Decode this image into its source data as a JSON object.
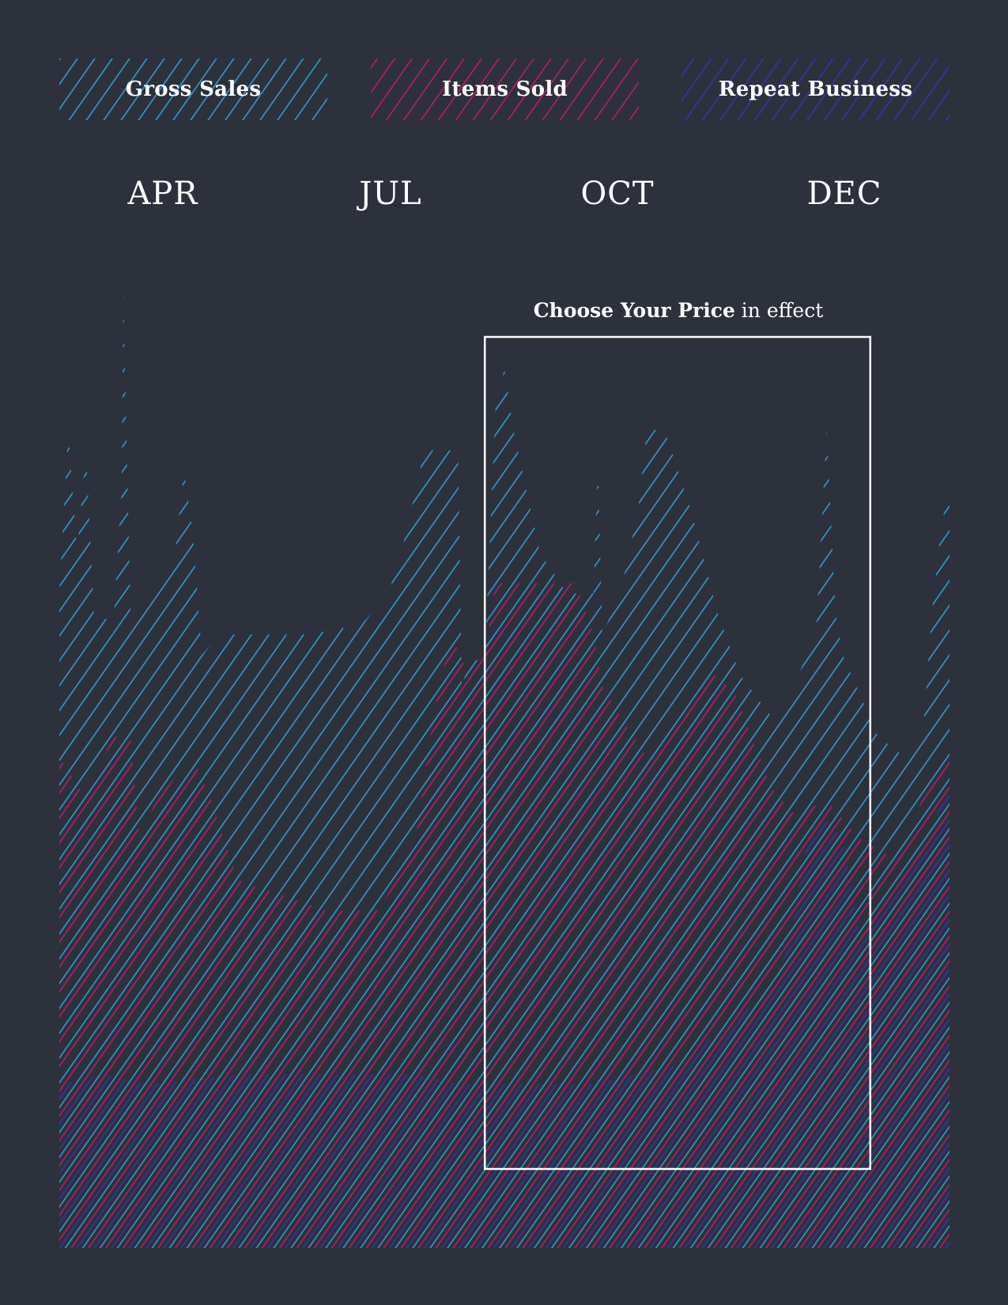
{
  "legend": [
    {
      "label": "Gross Sales",
      "color": "#2e9bd0"
    },
    {
      "label": "Items Sold",
      "color": "#c2166f"
    },
    {
      "label": "Repeat Business",
      "color": "#3a2fb0"
    }
  ],
  "months": [
    "APR",
    "JUL",
    "OCT",
    "DEC"
  ],
  "annotation": {
    "bold": "Choose Your Price",
    "rest": "in effect"
  },
  "colors": {
    "background": "#2d313c",
    "box": "#ffffff"
  },
  "chart_data": {
    "type": "area",
    "x_ticks": [
      "APR",
      "JUL",
      "OCT",
      "DEC"
    ],
    "grid": false,
    "legend": "top",
    "ylim": [
      0,
      100
    ],
    "highlight": {
      "label": "Choose Your Price in effect",
      "start": 0.478,
      "end": 0.911
    },
    "series": [
      {
        "name": "Gross Sales",
        "color": "#2e9bd0",
        "x": [
          0,
          0.01,
          0.02,
          0.03,
          0.04,
          0.05,
          0.06,
          0.07,
          0.072,
          0.075,
          0.08,
          0.1,
          0.13,
          0.14,
          0.15,
          0.16,
          0.18,
          0.22,
          0.28,
          0.34,
          0.37,
          0.39,
          0.41,
          0.43,
          0.448,
          0.452,
          0.46,
          0.478,
          0.49,
          0.5,
          0.51,
          0.54,
          0.57,
          0.6,
          0.605,
          0.61,
          0.62,
          0.63,
          0.65,
          0.66,
          0.68,
          0.71,
          0.74,
          0.765,
          0.8,
          0.825,
          0.85,
          0.862,
          0.872,
          0.88,
          0.9,
          0.92,
          0.95,
          0.97,
          0.98,
          0.99,
          1.0
        ],
        "y": [
          64,
          80,
          68,
          78,
          60,
          62,
          60,
          74,
          94,
          81,
          62,
          64,
          68,
          76,
          70,
          58,
          60,
          60,
          60,
          61,
          64,
          70,
          78,
          78,
          78,
          55,
          57,
          58,
          82,
          86,
          80,
          68,
          64,
          64,
          77,
          60,
          62,
          64,
          72,
          80,
          80,
          72,
          62,
          56,
          52,
          55,
          60,
          80,
          62,
          58,
          54,
          50,
          48,
          50,
          62,
          70,
          75
        ]
      },
      {
        "name": "Items Sold",
        "color": "#c2166f",
        "x": [
          0,
          0.03,
          0.06,
          0.08,
          0.09,
          0.11,
          0.15,
          0.17,
          0.2,
          0.3,
          0.36,
          0.4,
          0.42,
          0.44,
          0.46,
          0.478,
          0.49,
          0.5,
          0.58,
          0.6,
          0.61,
          0.63,
          0.66,
          0.7,
          0.72,
          0.74,
          0.76,
          0.8,
          0.83,
          0.86,
          0.9,
          0.94,
          0.97,
          1.0
        ],
        "y": [
          48,
          44,
          50,
          50,
          40,
          44,
          48,
          44,
          36,
          33,
          33,
          40,
          52,
          60,
          56,
          58,
          65,
          65,
          65,
          60,
          55,
          52,
          48,
          53,
          56,
          56,
          54,
          45,
          42,
          44,
          40,
          38,
          44,
          48
        ]
      },
      {
        "name": "Repeat Business",
        "color": "#3a2fb0",
        "x": [
          0,
          0.05,
          0.1,
          0.2,
          0.3,
          0.4,
          0.45,
          0.5,
          0.6,
          0.65,
          0.7,
          0.75,
          0.8,
          0.82,
          0.84,
          0.86,
          0.88,
          0.9,
          0.95,
          1.0
        ],
        "y": [
          16,
          17,
          16,
          17,
          17,
          17,
          16,
          16,
          16,
          17,
          18,
          22,
          25,
          30,
          40,
          42,
          40,
          30,
          36,
          45
        ]
      }
    ]
  }
}
